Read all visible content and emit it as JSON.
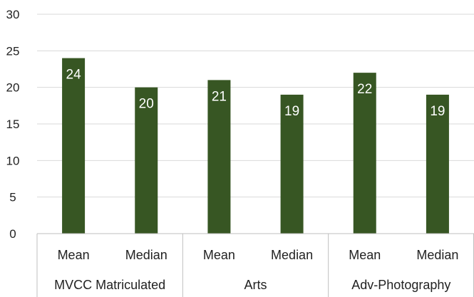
{
  "chart_data": {
    "type": "bar",
    "groups": [
      "MVCC Matriculated",
      "Arts",
      "Adv-Photography"
    ],
    "categories": [
      "Mean",
      "Median",
      "Mean",
      "Median",
      "Mean",
      "Median"
    ],
    "values": [
      24,
      20,
      21,
      19,
      22,
      19
    ],
    "data_labels": [
      "24",
      "20",
      "21",
      "19",
      "22",
      "19"
    ],
    "ylim": [
      0,
      30
    ],
    "yticks": [
      "0",
      "5",
      "10",
      "15",
      "20",
      "25",
      "30"
    ],
    "bar_color": "#375623",
    "grid": true,
    "legend": "none"
  }
}
